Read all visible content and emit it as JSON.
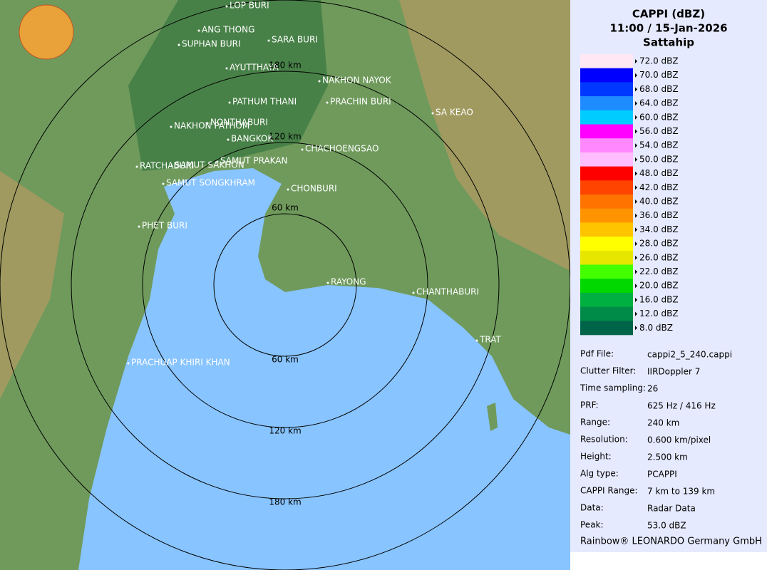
{
  "title": {
    "product": "CAPPI (dBZ)",
    "time": "11:00 / 15-Jan-2026",
    "site": "Sattahip"
  },
  "legend": {
    "items": [
      {
        "label": "72.0 dBZ",
        "color": "#ffe8f4"
      },
      {
        "label": "70.0 dBZ",
        "color": "#0000ff"
      },
      {
        "label": "68.0 dBZ",
        "color": "#0038ff"
      },
      {
        "label": "64.0 dBZ",
        "color": "#1e8cff"
      },
      {
        "label": "60.0 dBZ",
        "color": "#00ccff"
      },
      {
        "label": "56.0 dBZ",
        "color": "#ff00ff"
      },
      {
        "label": "54.0 dBZ",
        "color": "#ff88ff"
      },
      {
        "label": "50.0 dBZ",
        "color": "#ffbcff"
      },
      {
        "label": "48.0 dBZ",
        "color": "#ff0000"
      },
      {
        "label": "42.0 dBZ",
        "color": "#ff4400"
      },
      {
        "label": "40.0 dBZ",
        "color": "#ff7400"
      },
      {
        "label": "36.0 dBZ",
        "color": "#ff9400"
      },
      {
        "label": "34.0 dBZ",
        "color": "#ffc400"
      },
      {
        "label": "28.0 dBZ",
        "color": "#ffff00"
      },
      {
        "label": "26.0 dBZ",
        "color": "#e6e600"
      },
      {
        "label": "22.0 dBZ",
        "color": "#44ff00"
      },
      {
        "label": "20.0 dBZ",
        "color": "#00d800"
      },
      {
        "label": "16.0 dBZ",
        "color": "#00b040"
      },
      {
        "label": "12.0 dBZ",
        "color": "#008c48"
      },
      {
        "label": "8.0 dBZ",
        "color": "#006448"
      }
    ]
  },
  "info": [
    {
      "key": "Pdf File:",
      "value": "cappi2_5_240.cappi"
    },
    {
      "key": "Clutter Filter:",
      "value": "IIRDoppler 7"
    },
    {
      "key": "Time sampling:",
      "value": "26"
    },
    {
      "key": "PRF:",
      "value": "625 Hz / 416 Hz"
    },
    {
      "key": "Range:",
      "value": "240 km"
    },
    {
      "key": "Resolution:",
      "value": "0.600 km/pixel"
    },
    {
      "key": "Height:",
      "value": "2.500 km"
    },
    {
      "key": "Alg type:",
      "value": "PCAPPI"
    },
    {
      "key": "CAPPI Range:",
      "value": "7 km to 139 km"
    },
    {
      "key": "Data:",
      "value": "Radar Data"
    },
    {
      "key": "Peak:",
      "value": "53.0 dBZ"
    }
  ],
  "footer": "Rainbow® LEONARDO Germany GmbH",
  "map": {
    "range_labels": [
      "180 km",
      "120 km",
      "60 km",
      "60 km",
      "120 km",
      "180 km"
    ],
    "cities": [
      "LOP BURI",
      "ANG THONG",
      "SARA BURI",
      "SUPHAN BURI",
      "AYUTTHAYA",
      "NAKHON NAYOK",
      "PATHUM THANI",
      "PRACHIN BURI",
      "SA KEAO",
      "NONTHABURI",
      "NAKHON PATHOM",
      "BANGKOK",
      "CHACHOENGSAO",
      "SAMUT PRAKAN",
      "RATCHABURI",
      "SAMUT SAKHON",
      "SAMUT SONGKHRAM",
      "CHONBURI",
      "PHET BURI",
      "RAYONG",
      "CHANTHABURI",
      "TRAT",
      "PRACHUAP KHIRI KHAN"
    ]
  }
}
